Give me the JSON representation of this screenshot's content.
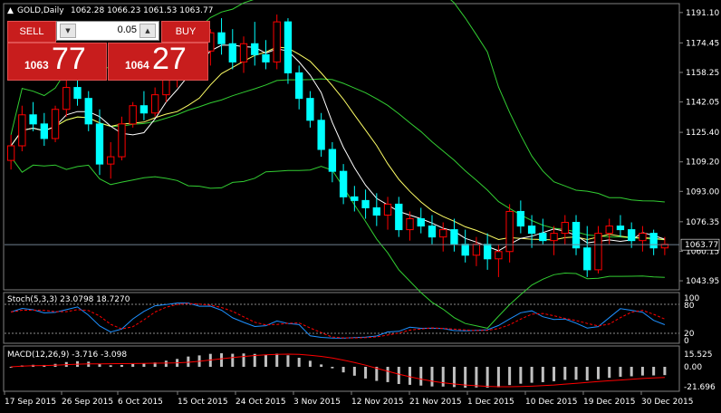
{
  "window": {
    "symbol_title": "GOLD,Daily",
    "ohlc_readout": "1062.28 1066.23 1061.53 1063.77"
  },
  "trade_panel": {
    "sell_label": "SELL",
    "buy_label": "BUY",
    "lot_value": "0.05",
    "sell_price_prefix": "1063",
    "sell_price_big": "77",
    "buy_price_prefix": "1064",
    "buy_price_big": "27"
  },
  "price_axis": {
    "labels": [
      "1191.10",
      "1174.45",
      "1158.25",
      "1142.05",
      "1125.40",
      "1109.20",
      "1093.00",
      "1076.35",
      "1060.15",
      "1043.95"
    ],
    "current_price_label": "1063.77"
  },
  "stoch": {
    "title": "Stoch(5,3,3) 23.0798 18.7270",
    "scale_labels": [
      "100",
      "80",
      "20",
      "0"
    ]
  },
  "macd": {
    "title": "MACD(12,26,9) -3.716 -3.098",
    "scale_labels": [
      "15.525",
      "0.00",
      "-21.696"
    ]
  },
  "time_axis": {
    "labels": [
      "17 Sep 2015",
      "26 Sep 2015",
      "6 Oct 2015",
      "15 Oct 2015",
      "24 Oct 2015",
      "3 Nov 2015",
      "12 Nov 2015",
      "21 Nov 2015",
      "1 Dec 2015",
      "10 Dec 2015",
      "19 Dec 2015",
      "30 Dec 2015"
    ]
  },
  "colors": {
    "background": "#000000",
    "bull_candle": "#000000",
    "bear_candle": "#00ffff",
    "candle_wick_up": "#ff0000",
    "bollinger": "#32cd32",
    "ma_fast": "#ffffff",
    "ma_slow": "#ffff66",
    "stoch_main": "#1e90ff",
    "stoch_signal": "#ff0000",
    "macd_hist": "#c0c0c0",
    "macd_signal": "#ff0000",
    "panel_button": "#c81d1d"
  },
  "chart_data": {
    "type": "candlestick",
    "candles": [
      [
        1110,
        1124,
        1105,
        1118
      ],
      [
        1118,
        1140,
        1115,
        1135
      ],
      [
        1135,
        1142,
        1126,
        1130
      ],
      [
        1130,
        1136,
        1118,
        1122
      ],
      [
        1122,
        1140,
        1120,
        1138
      ],
      [
        1138,
        1155,
        1134,
        1150
      ],
      [
        1150,
        1158,
        1140,
        1144
      ],
      [
        1144,
        1148,
        1126,
        1130
      ],
      [
        1130,
        1138,
        1102,
        1108
      ],
      [
        1108,
        1120,
        1100,
        1112
      ],
      [
        1112,
        1134,
        1110,
        1130
      ],
      [
        1130,
        1142,
        1128,
        1140
      ],
      [
        1140,
        1148,
        1132,
        1136
      ],
      [
        1136,
        1150,
        1134,
        1146
      ],
      [
        1146,
        1162,
        1142,
        1158
      ],
      [
        1158,
        1170,
        1150,
        1164
      ],
      [
        1164,
        1182,
        1160,
        1178
      ],
      [
        1178,
        1186,
        1166,
        1170
      ],
      [
        1170,
        1182,
        1162,
        1180
      ],
      [
        1180,
        1188,
        1168,
        1174
      ],
      [
        1174,
        1182,
        1160,
        1164
      ],
      [
        1164,
        1178,
        1158,
        1174
      ],
      [
        1174,
        1186,
        1162,
        1168
      ],
      [
        1168,
        1176,
        1160,
        1164
      ],
      [
        1164,
        1190,
        1160,
        1186
      ],
      [
        1186,
        1188,
        1152,
        1158
      ],
      [
        1158,
        1162,
        1138,
        1144
      ],
      [
        1144,
        1148,
        1128,
        1132
      ],
      [
        1132,
        1136,
        1112,
        1116
      ],
      [
        1116,
        1120,
        1098,
        1104
      ],
      [
        1104,
        1108,
        1086,
        1090
      ],
      [
        1090,
        1096,
        1082,
        1088
      ],
      [
        1088,
        1094,
        1078,
        1084
      ],
      [
        1084,
        1092,
        1074,
        1080
      ],
      [
        1080,
        1090,
        1072,
        1086
      ],
      [
        1086,
        1090,
        1068,
        1072
      ],
      [
        1072,
        1082,
        1066,
        1078
      ],
      [
        1078,
        1084,
        1070,
        1074
      ],
      [
        1074,
        1080,
        1064,
        1068
      ],
      [
        1068,
        1076,
        1060,
        1072
      ],
      [
        1072,
        1078,
        1060,
        1064
      ],
      [
        1064,
        1072,
        1054,
        1058
      ],
      [
        1058,
        1068,
        1052,
        1064
      ],
      [
        1064,
        1070,
        1050,
        1056
      ],
      [
        1056,
        1064,
        1046,
        1060
      ],
      [
        1060,
        1086,
        1054,
        1082
      ],
      [
        1082,
        1088,
        1070,
        1074
      ],
      [
        1074,
        1080,
        1062,
        1070
      ],
      [
        1070,
        1078,
        1064,
        1066
      ],
      [
        1066,
        1074,
        1058,
        1070
      ],
      [
        1070,
        1080,
        1064,
        1076
      ],
      [
        1076,
        1080,
        1058,
        1062
      ],
      [
        1062,
        1074,
        1046,
        1050
      ],
      [
        1050,
        1074,
        1048,
        1070
      ],
      [
        1070,
        1078,
        1064,
        1074
      ],
      [
        1074,
        1080,
        1068,
        1072
      ],
      [
        1072,
        1076,
        1062,
        1066
      ],
      [
        1066,
        1074,
        1060,
        1070
      ],
      [
        1070,
        1072,
        1058,
        1062
      ],
      [
        1062,
        1068,
        1058,
        1064
      ]
    ],
    "current_price": 1063.77,
    "ylim": [
      1040,
      1195
    ]
  }
}
